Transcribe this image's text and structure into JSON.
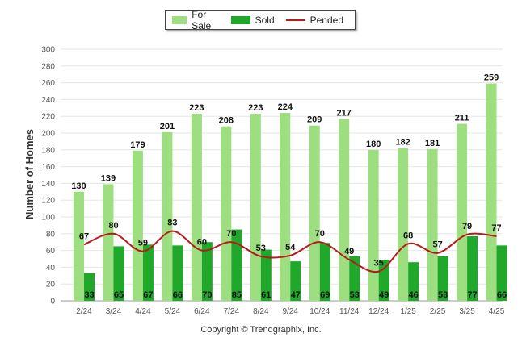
{
  "colors": {
    "for_sale": "#9ddf80",
    "sold": "#1fa82a",
    "pended": "#b81a1a",
    "grid": "#e6e6e6",
    "axis_text": "#555555"
  },
  "legend": {
    "items": [
      {
        "label": "For Sale"
      },
      {
        "label": "Sold"
      },
      {
        "label": "Pended"
      }
    ]
  },
  "copyright": "Copyright © Trendgraphix, Inc.",
  "chart_data": {
    "type": "bar",
    "ylabel": "Number of Homes",
    "ylim": [
      0,
      300
    ],
    "yticks": [
      "0",
      "20",
      "40",
      "60",
      "80",
      "100",
      "120",
      "140",
      "160",
      "180",
      "200",
      "220",
      "240",
      "260",
      "280",
      "300"
    ],
    "categories": [
      "2/24",
      "3/24",
      "4/24",
      "5/24",
      "6/24",
      "7/24",
      "8/24",
      "9/24",
      "10/24",
      "11/24",
      "12/24",
      "1/25",
      "2/25",
      "3/25",
      "4/25"
    ],
    "series": [
      {
        "name": "For Sale",
        "kind": "bar",
        "values": [
          130,
          139,
          179,
          201,
          223,
          208,
          223,
          224,
          209,
          217,
          180,
          182,
          181,
          211,
          259
        ]
      },
      {
        "name": "Sold",
        "kind": "bar",
        "values": [
          33,
          65,
          67,
          66,
          70,
          85,
          61,
          47,
          69,
          53,
          49,
          46,
          53,
          77,
          66
        ]
      },
      {
        "name": "Pended",
        "kind": "line",
        "values": [
          67,
          80,
          59,
          83,
          60,
          70,
          53,
          54,
          70,
          49,
          35,
          68,
          57,
          79,
          77
        ]
      }
    ],
    "legend_position": "top-center",
    "grid": true
  }
}
